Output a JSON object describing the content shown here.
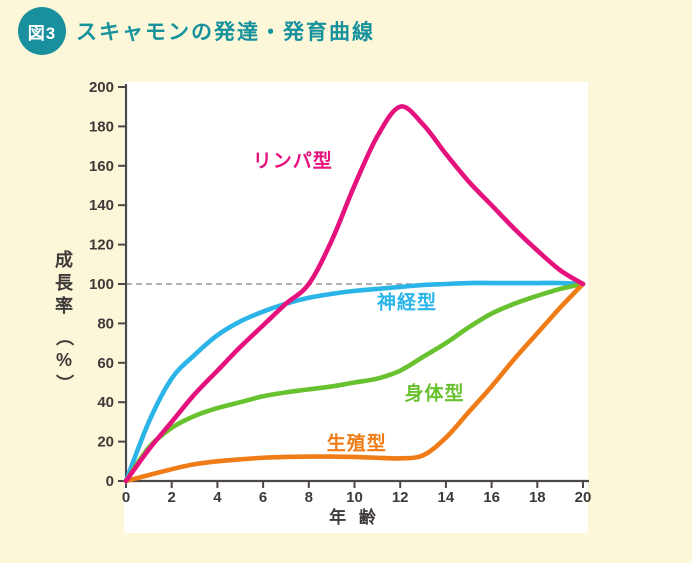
{
  "header": {
    "badge": "図3",
    "title": "スキャモンの発達・発育曲線"
  },
  "colors": {
    "background": "#fcf7d9",
    "panel": "#ffffff",
    "accent_teal": "#1a909d",
    "axis": "#4d4845",
    "tick_text": "#3e3a39",
    "reference_dash": "#999999"
  },
  "chart_data": {
    "type": "line",
    "title": "スキャモンの発達・発育曲線",
    "xlabel": "年 齢",
    "ylabel": "成長率（%）",
    "xlim": [
      0,
      20
    ],
    "ylim": [
      0,
      200
    ],
    "xticks": [
      0,
      2,
      4,
      6,
      8,
      10,
      12,
      14,
      16,
      18,
      20
    ],
    "yticks": [
      0,
      20,
      40,
      60,
      80,
      100,
      120,
      140,
      160,
      180,
      200
    ],
    "grid": false,
    "legend_position": "inline-labels",
    "reference_line": {
      "y": 100,
      "style": "dashed"
    },
    "x": [
      0,
      1,
      2,
      3,
      4,
      5,
      6,
      7,
      8,
      9,
      10,
      11,
      12,
      13,
      14,
      15,
      16,
      17,
      18,
      19,
      20
    ],
    "series": [
      {
        "name": "神経型",
        "color": "#2ab4e8",
        "values": [
          0,
          30,
          52,
          64,
          74,
          81,
          86,
          90,
          93,
          95,
          96.5,
          97.5,
          98.5,
          99.5,
          100,
          100.5,
          100.5,
          100.5,
          100.5,
          100.5,
          100
        ],
        "label_pos": {
          "x": 12.3,
          "y": 91
        }
      },
      {
        "name": "身体型",
        "color": "#68c12f",
        "values": [
          0,
          17,
          27,
          33,
          37,
          40,
          43,
          45,
          46.5,
          48,
          50,
          52,
          56,
          63,
          70,
          78,
          85,
          90,
          94,
          97.5,
          100
        ],
        "label_pos": {
          "x": 13.5,
          "y": 45
        }
      },
      {
        "name": "生殖型",
        "color": "#ef7c17",
        "values": [
          0,
          3,
          6,
          8.5,
          10,
          11,
          11.8,
          12.2,
          12.4,
          12.4,
          12.2,
          11.8,
          11.5,
          13,
          22,
          35,
          48,
          62,
          75,
          88,
          100
        ],
        "label_pos": {
          "x": 10.1,
          "y": 19.5
        }
      },
      {
        "name": "リンパ型",
        "color": "#e5117c",
        "values": [
          0,
          16,
          30,
          44,
          56,
          68,
          79,
          90,
          100,
          122,
          150,
          175,
          190,
          181,
          166,
          152,
          140,
          128,
          117,
          107,
          100
        ],
        "label_pos": {
          "x": 7.3,
          "y": 163
        }
      }
    ]
  }
}
